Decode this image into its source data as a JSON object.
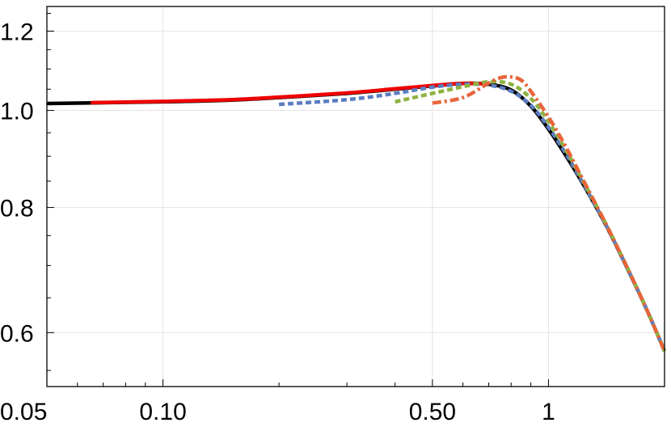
{
  "chart_data": {
    "type": "line",
    "title": "",
    "xlabel": "",
    "ylabel": "",
    "x_scale": "log",
    "y_scale": "log",
    "xlim": [
      0.05,
      2.0
    ],
    "ylim": [
      0.53,
      1.27
    ],
    "grid": true,
    "legend": "none",
    "x_ticks": [
      {
        "value": 0.05,
        "label": "0.05"
      },
      {
        "value": 0.1,
        "label": "0.10"
      },
      {
        "value": 0.5,
        "label": "0.50"
      },
      {
        "value": 1,
        "label": "1"
      }
    ],
    "y_ticks": [
      {
        "value": 0.6,
        "label": "0.6"
      },
      {
        "value": 0.8,
        "label": "0.8"
      },
      {
        "value": 1.0,
        "label": "1.0"
      },
      {
        "value": 1.2,
        "label": "1.2"
      }
    ],
    "series": [
      {
        "color": "#000000",
        "dash": "solid",
        "width": 4.5,
        "x": [
          0.05,
          0.07,
          0.1,
          0.15,
          0.2,
          0.3,
          0.4,
          0.5,
          0.6,
          0.7,
          0.8,
          0.9,
          1.0,
          1.1,
          1.2,
          1.4,
          1.6,
          1.8,
          2.0
        ],
        "y": [
          1.016,
          1.018,
          1.02,
          1.024,
          1.03,
          1.04,
          1.05,
          1.058,
          1.064,
          1.062,
          1.048,
          1.01,
          0.958,
          0.906,
          0.858,
          0.772,
          0.696,
          0.632,
          0.575
        ]
      },
      {
        "color": "#ee0000",
        "dash": "solid",
        "width": 4.5,
        "x": [
          0.065,
          0.1,
          0.15,
          0.2,
          0.3,
          0.4,
          0.5,
          0.6,
          0.7
        ],
        "y": [
          1.018,
          1.021,
          1.025,
          1.031,
          1.041,
          1.051,
          1.059,
          1.064,
          1.063
        ]
      },
      {
        "color": "#5b7ec2",
        "dash": "dotted",
        "width": 4.5,
        "x": [
          0.2,
          0.3,
          0.4,
          0.5,
          0.6,
          0.7,
          0.8,
          0.9,
          1.0,
          1.1,
          1.2,
          1.4,
          1.6,
          1.8,
          2.0
        ],
        "y": [
          1.014,
          1.025,
          1.04,
          1.055,
          1.062,
          1.06,
          1.045,
          1.012,
          0.962,
          0.91,
          0.86,
          0.772,
          0.696,
          0.632,
          0.575
        ]
      },
      {
        "color": "#8db33f",
        "dash": "dotted",
        "width": 4.5,
        "x": [
          0.4,
          0.5,
          0.6,
          0.7,
          0.8,
          0.9,
          1.0,
          1.1,
          1.2,
          1.4,
          1.6,
          1.8,
          2.0
        ],
        "y": [
          1.02,
          1.04,
          1.056,
          1.068,
          1.062,
          1.028,
          0.975,
          0.918,
          0.865,
          0.774,
          0.697,
          0.632,
          0.575
        ]
      },
      {
        "color": "#e8643a",
        "dash": "dashdot",
        "width": 4.5,
        "x": [
          0.5,
          0.6,
          0.7,
          0.75,
          0.8,
          0.85,
          0.9,
          1.0,
          1.1,
          1.2,
          1.4,
          1.6,
          1.8,
          2.0
        ],
        "y": [
          1.017,
          1.03,
          1.065,
          1.078,
          1.08,
          1.072,
          1.045,
          0.985,
          0.925,
          0.868,
          0.774,
          0.697,
          0.632,
          0.575
        ]
      }
    ]
  }
}
